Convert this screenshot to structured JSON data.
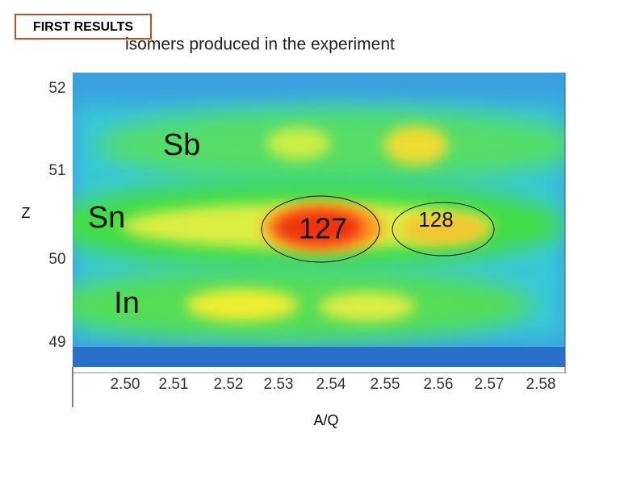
{
  "badge": "FIRST RESULTS",
  "title": "isomers produced in the experiment",
  "plot": {
    "y_label": "Z",
    "x_label": "A/Q",
    "y_ticks": [
      "52",
      "51",
      "50",
      "49"
    ],
    "x_ticks": [
      "2.50",
      "2.51",
      "2.52",
      "2.53",
      "2.54",
      "2.55",
      "2.56",
      "2.57",
      "2.58"
    ],
    "elements": [
      "Sb",
      "Sn",
      "In"
    ],
    "annotations": [
      "127",
      "128"
    ]
  }
}
